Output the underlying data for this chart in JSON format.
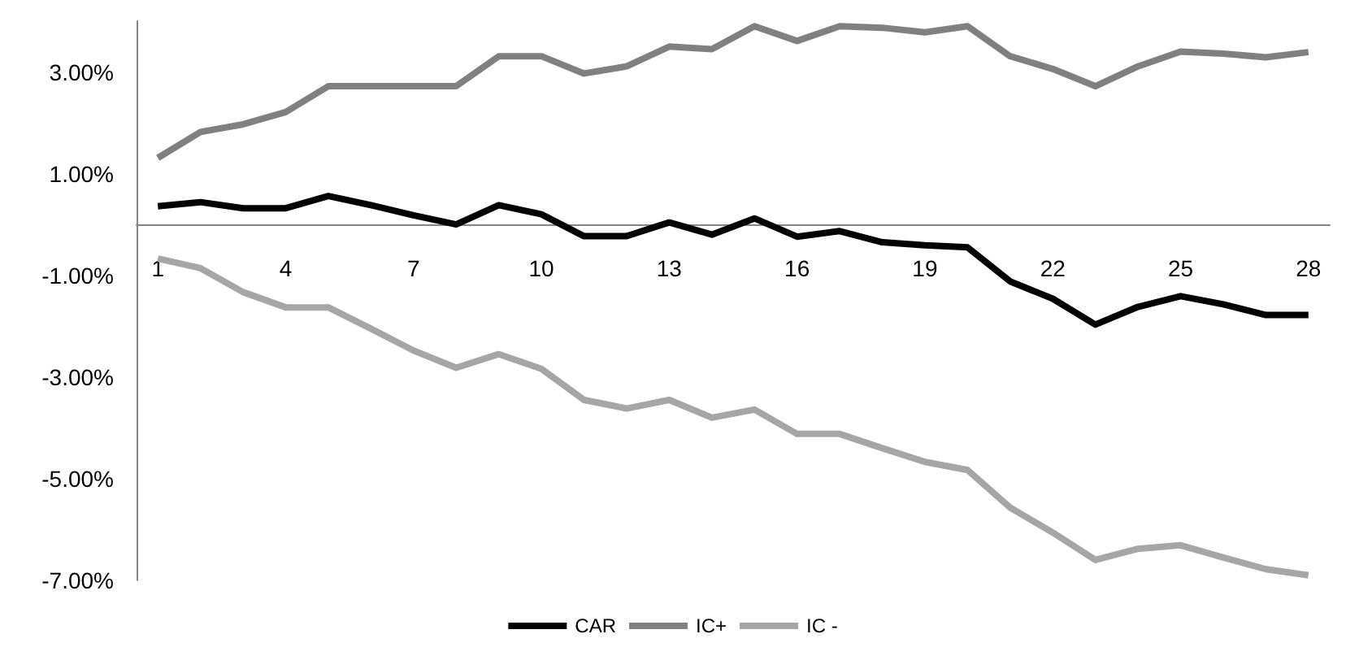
{
  "chart_data": {
    "type": "line",
    "categories": [
      "1",
      null,
      null,
      "4",
      null,
      null,
      "7",
      null,
      null,
      "10",
      null,
      null,
      "13",
      null,
      null,
      "16",
      null,
      null,
      "19",
      null,
      null,
      "22",
      null,
      null,
      "25",
      null,
      null,
      "28"
    ],
    "series": [
      {
        "name": "CAR",
        "color": "#000000",
        "values": [
          0.36,
          0.44,
          0.32,
          0.32,
          0.56,
          0.38,
          0.18,
          0,
          0.38,
          0.2,
          -0.23,
          -0.23,
          0.04,
          -0.2,
          0.12,
          -0.24,
          -0.13,
          -0.35,
          -0.41,
          -0.45,
          -1.12,
          -1.46,
          -1.97,
          -1.62,
          -1.41,
          -1.57,
          -1.78,
          -1.78
        ]
      },
      {
        "name": "IC+",
        "color": "#808080",
        "values": [
          1.31,
          1.82,
          1.97,
          2.21,
          2.72,
          2.72,
          2.72,
          2.72,
          3.31,
          3.31,
          2.97,
          3.11,
          3.5,
          3.45,
          3.9,
          3.61,
          3.9,
          3.87,
          3.78,
          3.9,
          3.31,
          3.06,
          2.72,
          3.11,
          3.4,
          3.36,
          3.29,
          3.39
        ]
      },
      {
        "name": "IC -",
        "color": "#a6a6a6",
        "values": [
          -0.67,
          -0.86,
          -1.33,
          -1.63,
          -1.63,
          -2.05,
          -2.48,
          -2.82,
          -2.55,
          -2.84,
          -3.45,
          -3.62,
          -3.45,
          -3.8,
          -3.64,
          -4.12,
          -4.12,
          -4.4,
          -4.67,
          -4.83,
          -5.57,
          -6.06,
          -6.6,
          -6.38,
          -6.31,
          -6.55,
          -6.78,
          -6.9
        ]
      }
    ],
    "ylim": [
      -7,
      4
    ],
    "yticks": [
      {
        "value": -7,
        "label": "-7.00%"
      },
      {
        "value": -5,
        "label": "-5.00%"
      },
      {
        "value": -3,
        "label": "-3.00%"
      },
      {
        "value": -1,
        "label": "-1.00%"
      },
      {
        "value": 1,
        "label": "1.00%"
      },
      {
        "value": 3,
        "label": "3.00%"
      }
    ],
    "grid": false,
    "legend": "bottom",
    "marker": "none",
    "line_style": "solid"
  }
}
